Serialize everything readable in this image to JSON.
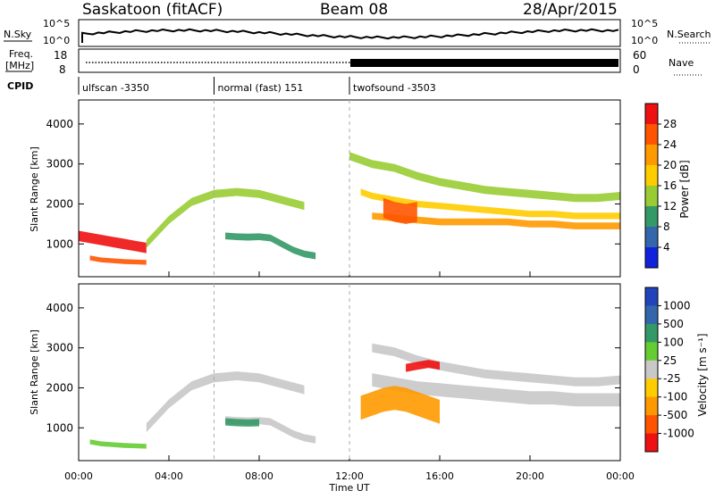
{
  "header": {
    "station": "Saskatoon (fitACF)",
    "beam": "Beam 08",
    "date": "28/Apr/2015"
  },
  "noise_panel": {
    "left_label": "N.Sky",
    "right_label": "N.Search",
    "top_tick": "10^5",
    "bottom_tick": "10^0"
  },
  "freq_panel": {
    "left_label_1": "Freq.",
    "left_label_2": "[MHz]",
    "left_ticks": [
      "18",
      "8"
    ],
    "right_label": "Nave",
    "right_ticks": [
      "60",
      "0"
    ]
  },
  "cpid": {
    "label": "CPID",
    "modes": [
      {
        "name": "ulfscan -3350",
        "start_hour": 0,
        "end_hour": 6.0
      },
      {
        "name": "normal (fast) 151",
        "start_hour": 6.0,
        "end_hour": 12.0
      },
      {
        "name": "twofsound -3503",
        "start_hour": 12.0,
        "end_hour": 24.0
      }
    ]
  },
  "chart_data": [
    {
      "type": "heatmap",
      "name": "power",
      "ylabel": "Slant Range [km]",
      "xlabel": "Time UT",
      "xlim_hours": [
        0,
        24
      ],
      "ylim_km": [
        180,
        4600
      ],
      "yticks": [
        1000,
        2000,
        3000,
        4000
      ],
      "colorbar": {
        "label": "Power [dB]",
        "ticks": [
          "28",
          "24",
          "20",
          "16",
          "12",
          "8",
          "4"
        ],
        "colors_top_to_bottom": [
          "#ee1111",
          "#ff5500",
          "#ff9900",
          "#ffcc00",
          "#99cc33",
          "#339966",
          "#3366aa",
          "#1122dd"
        ]
      },
      "bands": [
        {
          "hours": [
            0,
            0.5,
            1,
            1.5,
            2,
            2.5,
            3
          ],
          "range_km": [
            1200,
            1150,
            1100,
            1050,
            1000,
            950,
            900
          ],
          "color": "#ee1111",
          "width_km": 260
        },
        {
          "hours": [
            3,
            4,
            5,
            6,
            7,
            8,
            9,
            10
          ],
          "range_km": [
            1000,
            1600,
            2050,
            2250,
            2300,
            2250,
            2100,
            1950
          ],
          "color": "#99cc33",
          "width_km": 200
        },
        {
          "hours": [
            0.5,
            1,
            1.5,
            2,
            2.5,
            3
          ],
          "range_km": [
            650,
            600,
            580,
            560,
            550,
            540
          ],
          "color": "#ff5500",
          "width_km": 120
        },
        {
          "hours": [
            6.5,
            7,
            7.5,
            8,
            8.5,
            9,
            9.5,
            10,
            10.5
          ],
          "range_km": [
            1200,
            1180,
            1170,
            1180,
            1150,
            1000,
            850,
            750,
            700
          ],
          "color": "#339966",
          "width_km": 170
        },
        {
          "hours": [
            12,
            13,
            14,
            15,
            16,
            17,
            18,
            19,
            20,
            21,
            22,
            23,
            24
          ],
          "range_km": [
            3200,
            3000,
            2900,
            2700,
            2550,
            2450,
            2350,
            2300,
            2250,
            2200,
            2150,
            2150,
            2200
          ],
          "color": "#99cc33",
          "width_km": 200
        },
        {
          "hours": [
            12.5,
            13,
            14,
            15,
            16,
            17,
            18,
            19,
            20,
            21,
            22,
            23,
            24
          ],
          "range_km": [
            2300,
            2200,
            2100,
            2000,
            1950,
            1900,
            1850,
            1800,
            1750,
            1750,
            1700,
            1700,
            1700
          ],
          "color": "#ffcc00",
          "width_km": 160
        },
        {
          "hours": [
            13,
            14,
            15,
            16,
            17,
            18,
            19,
            20,
            21,
            22,
            23,
            24
          ],
          "range_km": [
            1700,
            1650,
            1600,
            1550,
            1550,
            1550,
            1550,
            1500,
            1500,
            1450,
            1450,
            1450
          ],
          "color": "#ff9900",
          "width_km": 170
        },
        {
          "hours": [
            13.5,
            14,
            14.5,
            15
          ],
          "range_km": [
            1900,
            1800,
            1750,
            1800
          ],
          "color": "#ff5500",
          "width_km": 500
        }
      ]
    },
    {
      "type": "heatmap",
      "name": "velocity",
      "ylabel": "Slant Range [km]",
      "xlabel": "Time UT",
      "xlim_hours": [
        0,
        24
      ],
      "ylim_km": [
        180,
        4600
      ],
      "yticks": [
        1000,
        2000,
        3000,
        4000
      ],
      "xticks": [
        "00:00",
        "04:00",
        "08:00",
        "12:00",
        "16:00",
        "20:00",
        "00:00"
      ],
      "colorbar": {
        "label": "Velocity [m s⁻¹]",
        "ticks": [
          "1000",
          "500",
          "100",
          "25",
          "-25",
          "-100",
          "-500",
          "-1000"
        ],
        "colors_top_to_bottom": [
          "#2244bb",
          "#3366aa",
          "#339966",
          "#66cc33",
          "#c8c8c8",
          "#ffcc00",
          "#ff9900",
          "#ff5500",
          "#ee1111"
        ]
      },
      "bands": [
        {
          "hours": [
            3,
            4,
            5,
            6,
            7,
            8,
            9,
            10
          ],
          "range_km": [
            1000,
            1600,
            2050,
            2250,
            2300,
            2250,
            2100,
            1950
          ],
          "color": "#c8c8c8",
          "width_km": 220
        },
        {
          "hours": [
            0.5,
            1,
            1.5,
            2,
            2.5,
            3
          ],
          "range_km": [
            650,
            600,
            580,
            560,
            550,
            540
          ],
          "color": "#66cc33",
          "width_km": 120
        },
        {
          "hours": [
            6.5,
            7,
            7.5,
            8,
            8.5,
            9,
            9.5,
            10,
            10.5
          ],
          "range_km": [
            1200,
            1180,
            1170,
            1180,
            1150,
            1000,
            850,
            750,
            700
          ],
          "color": "#c8c8c8",
          "width_km": 180
        },
        {
          "hours": [
            6.5,
            7,
            7.5,
            8
          ],
          "range_km": [
            1150,
            1130,
            1120,
            1130
          ],
          "color": "#339966",
          "width_km": 180
        },
        {
          "hours": [
            13,
            14,
            15,
            16,
            17,
            18,
            19,
            20,
            21,
            22,
            23,
            24
          ],
          "range_km": [
            3000,
            2900,
            2700,
            2550,
            2450,
            2350,
            2300,
            2250,
            2200,
            2150,
            2150,
            2200
          ],
          "color": "#c8c8c8",
          "width_km": 220
        },
        {
          "hours": [
            13,
            14,
            15,
            16,
            17,
            18,
            19,
            20,
            21,
            22,
            23,
            24
          ],
          "range_km": [
            2200,
            2100,
            2000,
            1950,
            1900,
            1850,
            1800,
            1750,
            1750,
            1700,
            1700,
            1700
          ],
          "color": "#c8c8c8",
          "width_km": 330
        },
        {
          "hours": [
            12.5,
            13,
            13.5,
            14,
            14.5,
            15,
            15.5,
            16
          ],
          "range_km": [
            1500,
            1600,
            1700,
            1750,
            1700,
            1600,
            1500,
            1400
          ],
          "color": "#ff9900",
          "width_km": 600
        },
        {
          "hours": [
            14.5,
            15,
            15.5,
            16
          ],
          "range_km": [
            2500,
            2550,
            2600,
            2550
          ],
          "color": "#ee1111",
          "width_km": 200
        }
      ]
    }
  ]
}
